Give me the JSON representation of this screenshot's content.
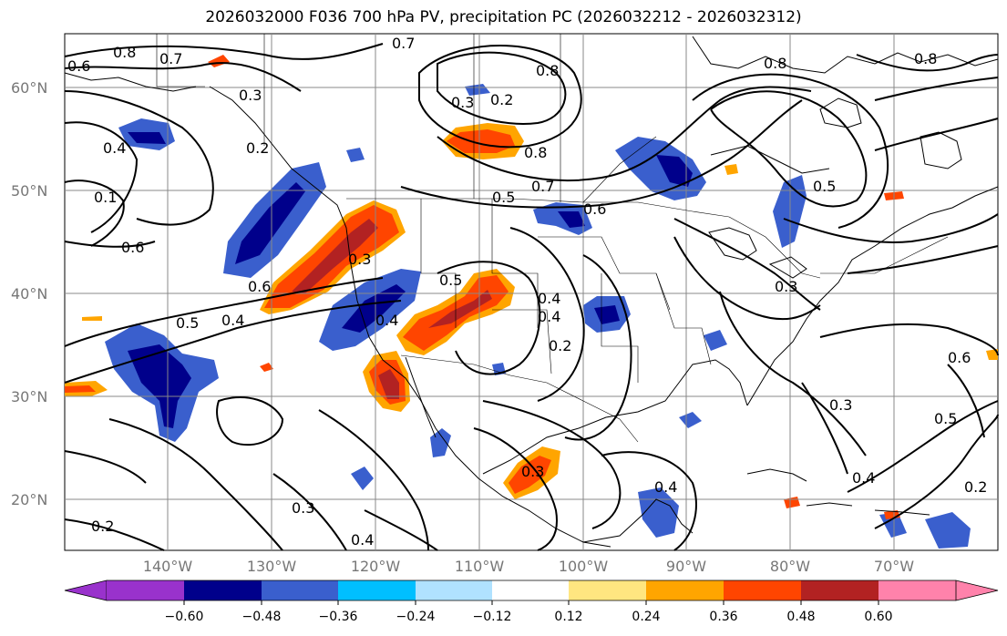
{
  "title": "2026032000 F036 700 hPa PV, precipitation PC (2026032212 - 2026032312)",
  "map": {
    "lat_labels": [
      "60°N",
      "50°N",
      "40°N",
      "30°N",
      "20°N"
    ],
    "lon_labels": [
      "140°W",
      "130°W",
      "120°W",
      "110°W",
      "100°W",
      "90°W",
      "80°W",
      "70°W"
    ],
    "lat_range": [
      15,
      65
    ],
    "lon_range": [
      -150,
      -60
    ],
    "gridlines": true,
    "coastlines": true,
    "contour_labels": [
      "0.8",
      "0.7",
      "0.6",
      "0.7",
      "0.8",
      "0.3",
      "0.2",
      "0.8",
      "0.8",
      "0.8",
      "0.4",
      "0.1",
      "0.6",
      "0.6",
      "0.5",
      "0.5",
      "0.4",
      "0.7",
      "0.6",
      "0.5",
      "0.3",
      "0.4",
      "0.4",
      "0.2",
      "0.3",
      "0.6",
      "0.5",
      "0.4",
      "0.3",
      "0.2",
      "0.3",
      "0.4",
      "0.2",
      "0.3",
      "0.4",
      "0.3",
      "0.2",
      "0.4",
      "0.5"
    ]
  },
  "colorbar": {
    "ticks": [
      "−0.60",
      "−0.48",
      "−0.36",
      "−0.24",
      "−0.12",
      "0.12",
      "0.24",
      "0.36",
      "0.48",
      "0.60"
    ],
    "colors": [
      "#9932cc",
      "#00008b",
      "#3a5fcd",
      "#00bfff",
      "#b0e2ff",
      "#ffffff",
      "#ffe680",
      "#ffa500",
      "#ff4500",
      "#b22222",
      "#ff82ab",
      "#ff69b4"
    ],
    "extend": "both"
  },
  "colors": {
    "contour": "#000000",
    "border": "#000000",
    "grid": "#888888"
  }
}
